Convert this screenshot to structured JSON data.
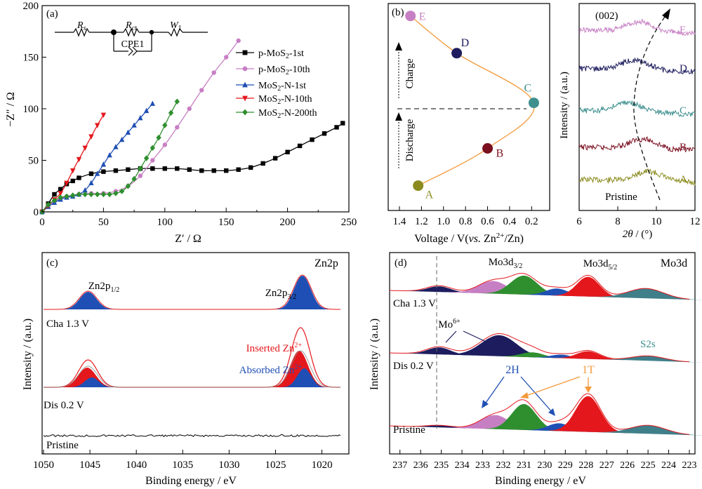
{
  "chart_data": [
    {
      "panel": "(a)",
      "type": "scatter",
      "xlabel": "Z′ / Ω",
      "ylabel": "−Z″ / Ω",
      "xlim": [
        0,
        250
      ],
      "ylim": [
        0,
        200
      ],
      "xticks": [
        0,
        50,
        100,
        150,
        200,
        250
      ],
      "yticks": [
        0,
        50,
        100,
        150,
        200
      ],
      "circuit": {
        "r1": "R",
        "r1_sub": "s",
        "r2": "R",
        "r2_sub": "ct",
        "w": "W",
        "w_sub": "1",
        "cpe": "CPE1"
      },
      "legend_position": "top-right",
      "series": [
        {
          "name": "p-MoS2-1st",
          "name_main": "p-MoS",
          "name_sub": "2",
          "name_tail": "-1st",
          "color": "#000000",
          "marker": "square",
          "x": [
            0,
            5,
            10,
            15,
            20,
            25,
            30,
            40,
            50,
            60,
            70,
            80,
            90,
            100,
            110,
            120,
            130,
            140,
            150,
            160,
            170,
            180,
            190,
            200,
            210,
            220,
            230,
            240,
            245
          ],
          "y": [
            0,
            8,
            17,
            22,
            27,
            30,
            33,
            37,
            39,
            40,
            41,
            42,
            42,
            42,
            42,
            41,
            40,
            40,
            40,
            41,
            43,
            47,
            52,
            58,
            64,
            70,
            76,
            82,
            86
          ]
        },
        {
          "name": "p-MoS2-10th",
          "name_main": "p-MoS",
          "name_sub": "2",
          "name_tail": "-10th",
          "color": "#c77fc4",
          "marker": "circle",
          "x": [
            0,
            5,
            10,
            15,
            20,
            30,
            40,
            50,
            60,
            70,
            80,
            90,
            100,
            110,
            120,
            130,
            140,
            150,
            160
          ],
          "y": [
            0,
            5,
            10,
            13,
            15,
            17,
            18,
            18,
            20,
            25,
            35,
            50,
            65,
            82,
            100,
            118,
            135,
            150,
            166
          ]
        },
        {
          "name": "MoS2-N-1st",
          "name_main": "MoS",
          "name_sub": "2",
          "name_tail": "-N-1st",
          "color": "#1f4fb4",
          "marker": "triangle-up",
          "x": [
            0,
            5,
            10,
            15,
            20,
            25,
            30,
            35,
            40,
            45,
            50,
            55,
            60,
            65,
            70,
            75,
            80,
            85,
            90
          ],
          "y": [
            0,
            5,
            9,
            12,
            14,
            15,
            17,
            21,
            28,
            37,
            46,
            55,
            63,
            70,
            77,
            84,
            91,
            98,
            105
          ]
        },
        {
          "name": "MoS2-N-10th",
          "name_main": "MoS",
          "name_sub": "2",
          "name_tail": "-N-10th",
          "color": "#e4181c",
          "marker": "triangle-down",
          "x": [
            0,
            5,
            10,
            15,
            20,
            25,
            30,
            35,
            40,
            45,
            50
          ],
          "y": [
            0,
            6,
            12,
            18,
            28,
            40,
            51,
            62,
            73,
            84,
            94
          ]
        },
        {
          "name": "MoS2-N-200th",
          "name_main": "MoS",
          "name_sub": "2",
          "name_tail": "-N-200th",
          "color": "#2f8f2f",
          "marker": "diamond",
          "x": [
            0,
            5,
            10,
            15,
            20,
            25,
            30,
            35,
            40,
            45,
            50,
            55,
            60,
            65,
            70,
            75,
            80,
            85,
            90,
            95,
            100,
            105,
            110
          ],
          "y": [
            0,
            7,
            11,
            14,
            15,
            16,
            17,
            17,
            17,
            17,
            17,
            17,
            18,
            20,
            25,
            32,
            42,
            52,
            62,
            72,
            84,
            96,
            107
          ]
        }
      ]
    },
    {
      "panel": "(b)",
      "type": "line",
      "xlabel_prefix": "Voltage / V(",
      "xlabel_italic": "vs.",
      "xlabel_mid": " Zn",
      "xlabel_sup": "2+",
      "xlabel_suffix": "/Zn)",
      "xlim": [
        1.4,
        0.1
      ],
      "xticks": [
        1.4,
        1.2,
        1.0,
        0.8,
        0.6,
        0.4,
        0.2
      ],
      "xtick_labels": [
        "1.4",
        "1.2",
        "1.0",
        "0.8",
        "0.6",
        "0.4",
        "0.2"
      ],
      "ylim": [
        0,
        1
      ],
      "charge_label": "Charge",
      "discharge_label": "Discharge",
      "line_color": "#f39a3a",
      "points": [
        {
          "label": "A",
          "voltage": 1.23,
          "level": 0.12,
          "color": "#8a8a1e"
        },
        {
          "label": "B",
          "voltage": 0.6,
          "level": 0.3,
          "color": "#7a0f1f"
        },
        {
          "label": "C",
          "voltage": 0.18,
          "level": 0.52,
          "color": "#3f8f8f"
        },
        {
          "label": "D",
          "voltage": 0.88,
          "level": 0.76,
          "color": "#1c1c5e"
        },
        {
          "label": "E",
          "voltage": 1.3,
          "level": 0.94,
          "color": "#c77fc4"
        }
      ]
    },
    {
      "panel": "XRD",
      "type": "line",
      "xlabel_italic": "2θ",
      "xlabel_rest": " / (°)",
      "ylabel": "Intensity / (a.u.)",
      "xlim": [
        6,
        12
      ],
      "xticks": [
        6,
        8,
        10,
        12
      ],
      "peak_label": "(002)",
      "series": [
        {
          "name": "A",
          "color": "#8a8a1e",
          "peak": 9.6
        },
        {
          "name": "B",
          "color": "#7a0f1f",
          "peak": 9.3
        },
        {
          "name": "C",
          "color": "#3f8f8f",
          "peak": 8.5
        },
        {
          "name": "D",
          "color": "#1c1c5e",
          "peak": 8.9
        },
        {
          "name": "E",
          "color": "#c77fc4",
          "peak": 9.1
        }
      ],
      "pristine_label": "Pristine"
    },
    {
      "panel": "(c)",
      "type": "line",
      "xlabel": "Binding energy / eV",
      "ylabel": "Intensity / (a.u.)",
      "xlim": [
        1050,
        1018
      ],
      "xticks": [
        1050,
        1045,
        1040,
        1035,
        1030,
        1025,
        1020
      ],
      "title": "Zn2p",
      "peak_12": {
        "main": "Zn2p",
        "sub": "1/2",
        "position_ev": 1045.2
      },
      "peak_32": {
        "main": "Zn2p",
        "sub": "3/2",
        "position_ev": 1022.1
      },
      "traces": [
        "Cha 1.3 V",
        "Dis 0.2 V",
        "Pristine"
      ],
      "components": [
        {
          "name": "Inserted Zn2+",
          "main": "Inserted Zn",
          "sup": "2+",
          "color": "#e4181c"
        },
        {
          "name": "Absorbed Zn2+",
          "main": "Absorbed Zn",
          "sup": "2+",
          "color": "#1f4fb4"
        }
      ]
    },
    {
      "panel": "(d)",
      "type": "line",
      "xlabel": "Binding energy / eV",
      "ylabel": "Intensity / (a.u.)",
      "xlim": [
        237.5,
        223
      ],
      "xticks": [
        237,
        236,
        235,
        234,
        233,
        232,
        231,
        230,
        229,
        228,
        227,
        226,
        225,
        224,
        223
      ],
      "title": "Mo3d",
      "label_d32": {
        "main": "Mo3d",
        "sub": "3/2"
      },
      "label_d52": {
        "main": "Mo3d",
        "sub": "5/2"
      },
      "label_mo6": {
        "main": "Mo",
        "sup": "6+"
      },
      "label_s2s": "S2s",
      "label_2h": "2H",
      "label_1t": "1T",
      "traces": [
        "Cha 1.3 V",
        "Dis 0.2 V",
        "Pristine"
      ]
    }
  ]
}
